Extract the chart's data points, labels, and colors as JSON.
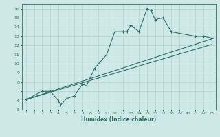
{
  "xlabel": "Humidex (Indice chaleur)",
  "bg_color": "#cde8e5",
  "line_color": "#2e6e65",
  "grid_color": "#afd4d0",
  "xlim": [
    -0.5,
    23.5
  ],
  "ylim": [
    5,
    16.5
  ],
  "xticks": [
    0,
    1,
    2,
    3,
    4,
    5,
    6,
    7,
    8,
    9,
    10,
    11,
    12,
    13,
    14,
    15,
    16,
    17,
    18,
    19,
    20,
    21,
    22,
    23
  ],
  "yticks": [
    5,
    6,
    7,
    8,
    9,
    10,
    11,
    12,
    13,
    14,
    15,
    16
  ],
  "curve1_x": [
    0,
    2,
    3,
    4,
    4.3,
    5,
    6,
    7,
    7.5,
    8.5,
    10,
    11,
    12,
    12.5,
    13,
    14,
    15,
    15.5,
    16,
    17,
    18,
    21,
    22,
    23
  ],
  "curve1_y": [
    6.1,
    7.0,
    7.0,
    6.0,
    5.5,
    6.2,
    6.5,
    7.8,
    7.6,
    9.5,
    11.0,
    13.5,
    13.5,
    13.5,
    14.2,
    13.5,
    16.0,
    15.8,
    14.8,
    15.0,
    13.5,
    13.0,
    13.0,
    12.8
  ],
  "line2_x": [
    0,
    23
  ],
  "line2_y": [
    6.1,
    12.7
  ],
  "line3_x": [
    0,
    23
  ],
  "line3_y": [
    6.1,
    12.1
  ]
}
